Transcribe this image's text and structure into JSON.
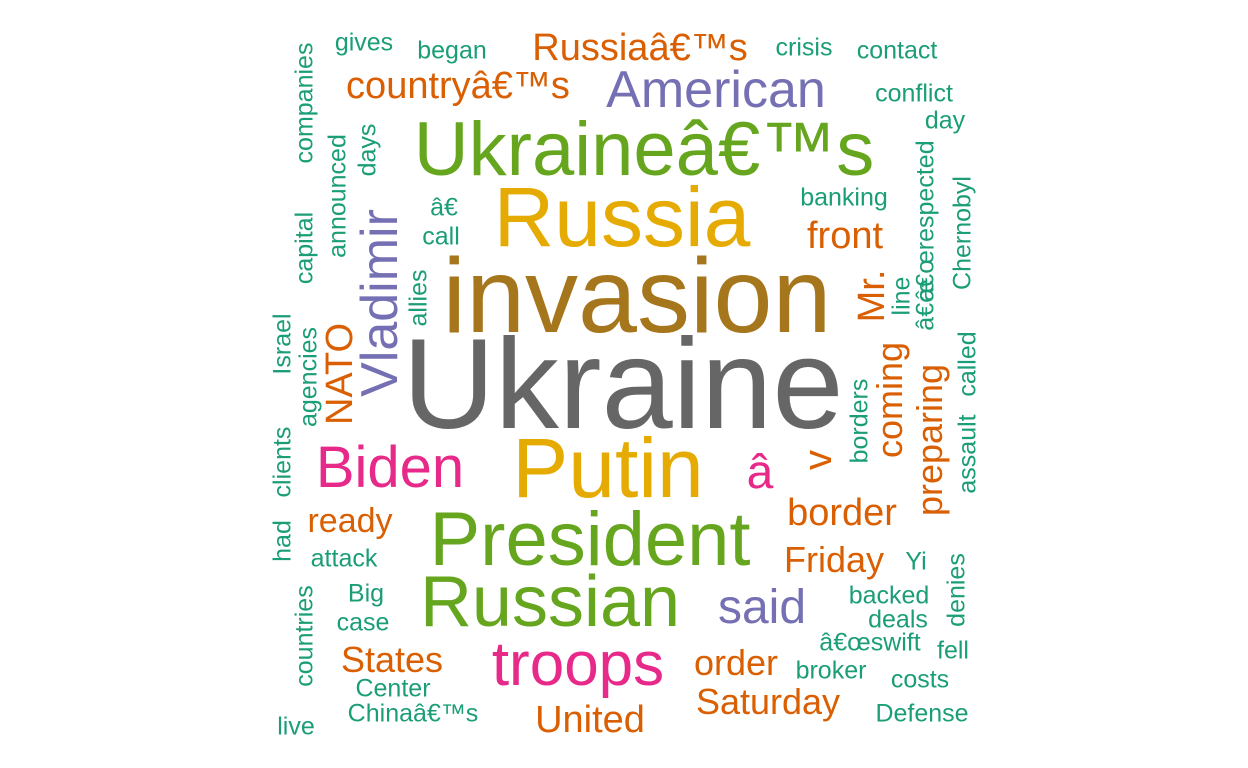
{
  "palette": {
    "gray": "#666666",
    "olive": "#A6761D",
    "gold": "#E6AB02",
    "green": "#66A61E",
    "magenta": "#E7298A",
    "purple": "#7570B3",
    "orange": "#D95F02",
    "teal": "#1B9E77"
  },
  "words": [
    "Ukraine",
    "invasion",
    "Russia",
    "Ukraineâ€™s",
    "Putin",
    "President",
    "Russian",
    "troops",
    "Biden",
    "American",
    "Vladimir",
    "said",
    "Russiaâ€™s",
    "countryâ€™s",
    "front",
    "Mr.",
    "â",
    "v",
    "coming",
    "preparing",
    "border",
    "Friday",
    "order",
    "Saturday",
    "United",
    "States",
    "ready",
    "NATO",
    "gives",
    "began",
    "crisis",
    "contact",
    "conflict",
    "day",
    "companies",
    "days",
    "announced",
    "capital",
    "banking",
    "â€",
    "call",
    "allies",
    "Israel",
    "agencies",
    "clients",
    "had",
    "attack",
    "Big",
    "case",
    "countries",
    "Center",
    "Chinaâ€™s",
    "live",
    "â€œrespected",
    "Chernobyl",
    "line",
    "â€œ",
    "called",
    "assault",
    "borders",
    "Yi",
    "backed",
    "deals",
    "denies",
    "â€œswift",
    "fell",
    "broker",
    "costs",
    "Defense"
  ]
}
